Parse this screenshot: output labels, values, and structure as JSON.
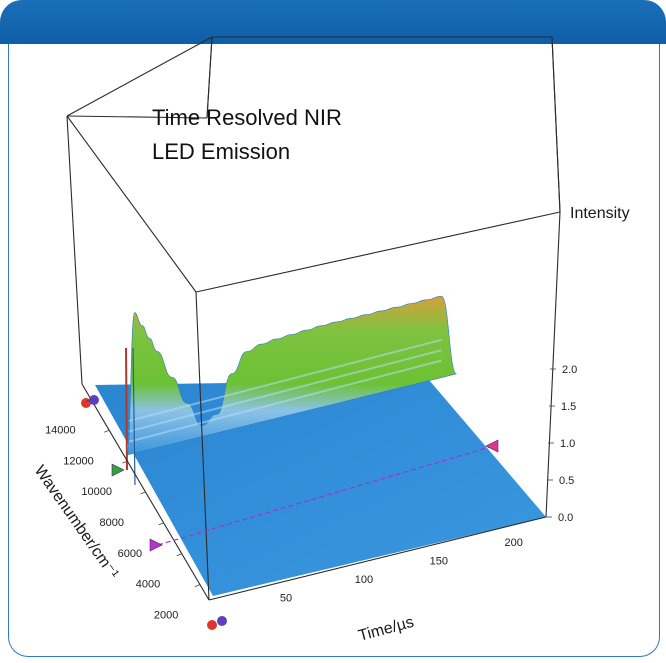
{
  "chart_data": {
    "type": "surface",
    "title_lines": [
      "Time Resolved NIR",
      "LED Emission"
    ],
    "xlabel": "Time/µs",
    "ylabel": "Wavenumber/cm⁻¹",
    "zlabel": "Intensity",
    "x_ticks": [
      50,
      100,
      150,
      200
    ],
    "y_ticks": [
      2000,
      4000,
      6000,
      8000,
      10000,
      12000,
      14000
    ],
    "z_ticks": [
      "0.0",
      "0.5",
      "1.0",
      "1.5",
      "2.0"
    ],
    "xlim": [
      0,
      225
    ],
    "ylim": [
      1000,
      15000
    ],
    "zlim": [
      0,
      2.2
    ],
    "emission_band_wavenumber": 11000,
    "series": [
      {
        "x": [
          0,
          5,
          10,
          15,
          20,
          30,
          40,
          50,
          60,
          70,
          80,
          90,
          100,
          110,
          120,
          130,
          140,
          150,
          160,
          170,
          180,
          190,
          200,
          210,
          220
        ],
        "z": [
          0.0,
          1.9,
          1.7,
          1.5,
          1.3,
          0.9,
          0.5,
          0.15,
          0.25,
          0.75,
          1.0,
          1.05,
          1.07,
          1.08,
          1.09,
          1.1,
          1.1,
          1.1,
          1.1,
          1.1,
          1.1,
          1.1,
          1.1,
          1.1,
          0.0
        ]
      }
    ],
    "markers": [
      {
        "color": "#d63a8e",
        "label": "cursor-time"
      },
      {
        "color": "#b236c8",
        "label": "cursor-wavenumber"
      },
      {
        "color": "#2aa53b",
        "label": "band-marker"
      }
    ],
    "colors": {
      "floor": "#2e8fd8",
      "low": "#5aa6dc",
      "mid": "#6cc134",
      "high": "#c9a43a",
      "frame": "#1a6fb6"
    }
  }
}
